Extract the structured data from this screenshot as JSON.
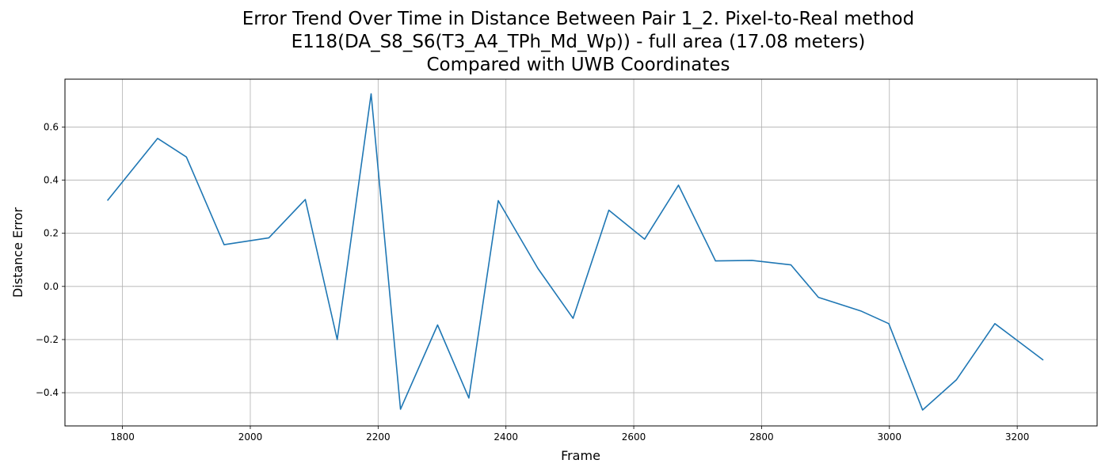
{
  "title_lines": [
    "Error Trend Over Time in Distance Between Pair 1_2. Pixel-to-Real method",
    "E118(DA_S8_S6(T3_A4_TPh_Md_Wp)) - full area (17.08 meters)",
    "Compared with UWB Coordinates"
  ],
  "chart_data": {
    "type": "line",
    "title": "Error Trend Over Time in Distance Between Pair 1_2. Pixel-to-Real method E118(DA_S8_S6(T3_A4_TPh_Md_Wp)) - full area (17.08 meters) Compared with UWB Coordinates",
    "xlabel": "Frame",
    "ylabel": "Distance Error",
    "xlim": [
      1710,
      3325
    ],
    "ylim": [
      -0.525,
      0.78
    ],
    "xticks": [
      1800,
      2000,
      2200,
      2400,
      2600,
      2800,
      3000,
      3200
    ],
    "yticks": [
      -0.4,
      -0.2,
      0.0,
      0.2,
      0.4,
      0.6
    ],
    "xtick_labels": [
      "1800",
      "2000",
      "2200",
      "2400",
      "2600",
      "2800",
      "3000",
      "3200"
    ],
    "ytick_labels": [
      "−0.4",
      "−0.2",
      "0.0",
      "0.2",
      "0.4",
      "0.6"
    ],
    "grid": true,
    "series": [
      {
        "color": "#1f77b4",
        "x": [
          1777,
          1855,
          1900,
          1959,
          2029,
          2086,
          2136,
          2189,
          2235,
          2293,
          2342,
          2388,
          2450,
          2505,
          2561,
          2617,
          2670,
          2728,
          2785,
          2846,
          2889,
          2955,
          2999,
          3052,
          3105,
          3165,
          3240
        ],
        "y": [
          0.325,
          0.557,
          0.487,
          0.157,
          0.183,
          0.327,
          -0.2,
          0.725,
          -0.462,
          -0.145,
          -0.42,
          0.323,
          0.068,
          -0.12,
          0.287,
          0.178,
          0.381,
          0.096,
          0.098,
          0.081,
          -0.041,
          -0.092,
          -0.14,
          -0.465,
          -0.351,
          -0.14,
          -0.276
        ]
      }
    ]
  }
}
